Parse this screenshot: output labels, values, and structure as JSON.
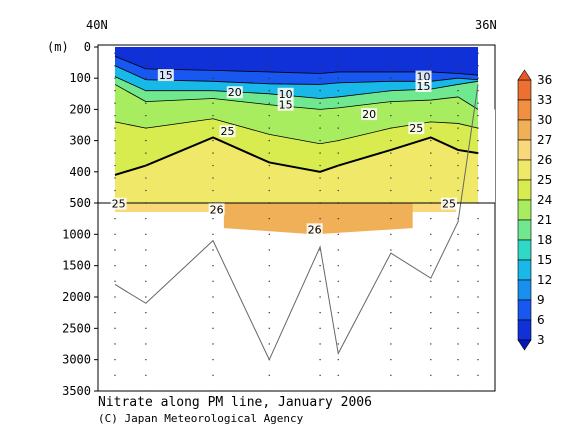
{
  "chart_data": {
    "type": "heatmap",
    "title": "Nitrate along PM line, January 2006",
    "credit": "(C) Japan Meteorological Agency",
    "x_labels": [
      "40N",
      "36N"
    ],
    "y_unit_label": "(m)",
    "y_ticks_upper": [
      0,
      100,
      200,
      300,
      400,
      500
    ],
    "y_ticks_lower": [
      1000,
      1500,
      2000,
      2500,
      3000,
      3500
    ],
    "colorbar_ticks": [
      3,
      6,
      9,
      12,
      15,
      18,
      21,
      24,
      25,
      26,
      27,
      30,
      33,
      36
    ],
    "colorbar_colors": [
      "#1030d8",
      "#1858f0",
      "#1890f0",
      "#18b8e8",
      "#30d8c8",
      "#70e890",
      "#a8ec60",
      "#d8ec50",
      "#f0e868",
      "#f8d878",
      "#f0b058",
      "#f09040",
      "#ec7030"
    ],
    "contour_labels": [
      {
        "value": "15",
        "x": 0.14,
        "depth": 90
      },
      {
        "value": "20",
        "x": 0.33,
        "depth": 145
      },
      {
        "value": "10",
        "x": 0.47,
        "depth": 150
      },
      {
        "value": "15",
        "x": 0.47,
        "depth": 185
      },
      {
        "value": "10",
        "x": 0.85,
        "depth": 95
      },
      {
        "value": "15",
        "x": 0.85,
        "depth": 125
      },
      {
        "value": "20",
        "x": 0.7,
        "depth": 215
      },
      {
        "value": "25",
        "x": 0.31,
        "depth": 270
      },
      {
        "value": "25",
        "x": 0.83,
        "depth": 260
      },
      {
        "value": "25",
        "x": 0.01,
        "depth": 510
      },
      {
        "value": "26",
        "x": 0.28,
        "depth": 600
      },
      {
        "value": "26",
        "x": 0.55,
        "depth": 920
      },
      {
        "value": "25",
        "x": 0.92,
        "depth": 510
      }
    ],
    "stations_x": [
      0.0,
      0.085,
      0.27,
      0.425,
      0.565,
      0.615,
      0.76,
      0.87,
      0.945,
      1.0
    ],
    "bottom_depth": [
      1800,
      2100,
      1100,
      3000,
      1200,
      2900,
      1300,
      1700,
      800,
      120
    ],
    "grid": false
  }
}
